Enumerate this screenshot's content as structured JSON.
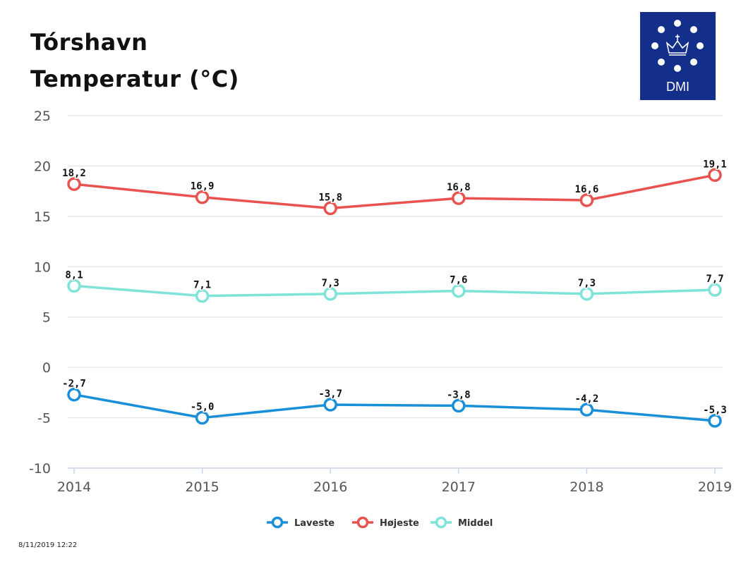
{
  "header": {
    "title_line1": "Tórshavn",
    "title_line2": "Temperatur (°C)"
  },
  "logo": {
    "text": "DMI",
    "background": "#132f8a"
  },
  "timestamp": "8/11/2019 12:22",
  "chart_data": {
    "type": "line",
    "x": [
      "2014",
      "2015",
      "2016",
      "2017",
      "2018",
      "2019"
    ],
    "ylim": [
      -10,
      25
    ],
    "yticks": [
      "25",
      "20",
      "15",
      "10",
      "5",
      "0",
      "-5",
      "-10"
    ],
    "grid": true,
    "legend_position": "bottom-center",
    "series": [
      {
        "name": "Laveste",
        "color": "#1a8fd9",
        "values": [
          -2.7,
          -5.0,
          -3.7,
          -3.8,
          -4.2,
          -5.3
        ],
        "labels": [
          "-2,7",
          "-5,0",
          "-3,7",
          "-3,8",
          "-4,2",
          "-5,3"
        ]
      },
      {
        "name": "Højeste",
        "color": "#e8524f",
        "values": [
          18.2,
          16.9,
          15.8,
          16.8,
          16.6,
          19.1
        ],
        "labels": [
          "18,2",
          "16,9",
          "15,8",
          "16,8",
          "16,6",
          "19,1"
        ]
      },
      {
        "name": "Middel",
        "color": "#7fe3d8",
        "values": [
          8.1,
          7.1,
          7.3,
          7.6,
          7.3,
          7.7
        ],
        "labels": [
          "8,1",
          "7,1",
          "7,3",
          "7,6",
          "7,3",
          "7,7"
        ]
      }
    ]
  }
}
